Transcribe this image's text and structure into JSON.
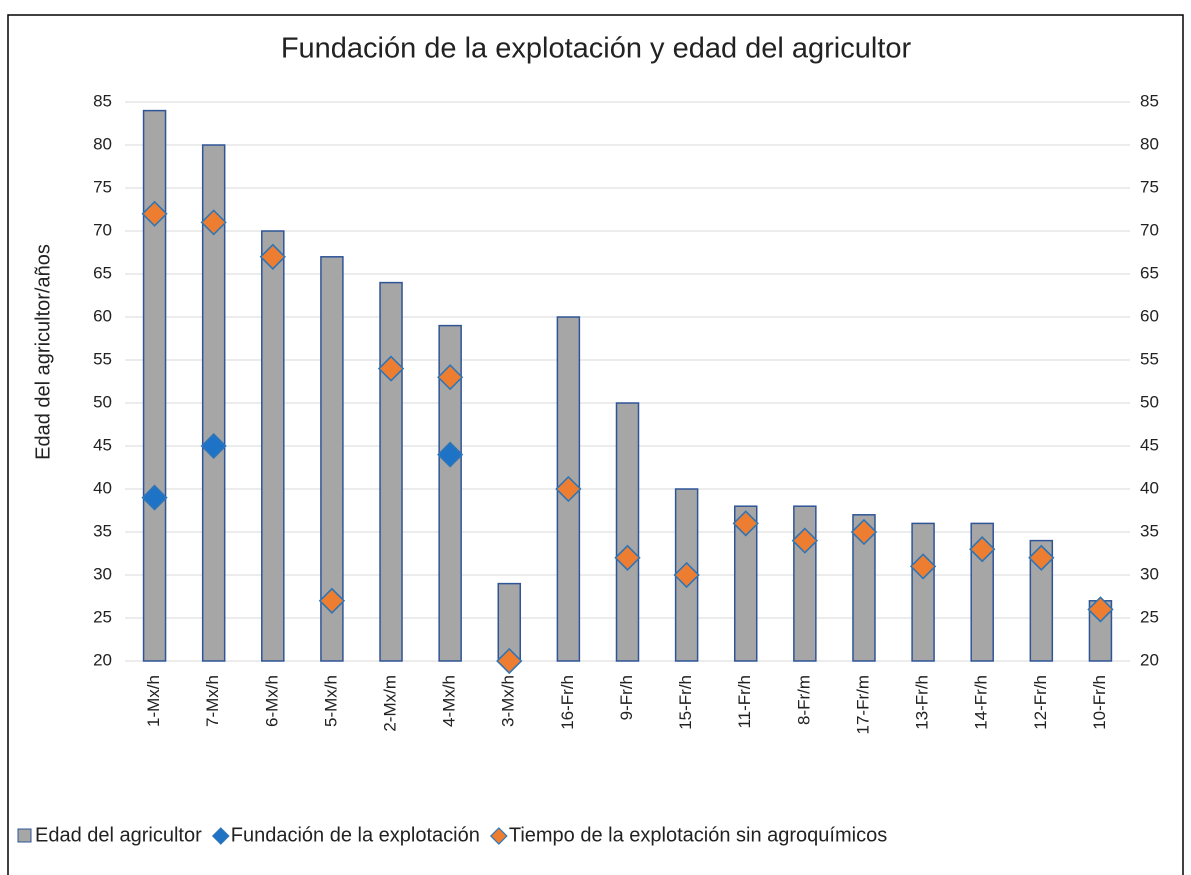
{
  "chart_data": {
    "type": "bar",
    "title": "Fundación de la explotación y edad del agricultor",
    "ylabel": "Edad del agricultor/años",
    "categories": [
      "1-Mx/h",
      "7-Mx/h",
      "6-Mx/h",
      "5-Mx/h",
      "2-Mx/m",
      "4-Mx/h",
      "3-Mx/h",
      "16-Fr/h",
      "9-Fr/h",
      "15-Fr/h",
      "11-Fr/h",
      "8-Fr/m",
      "17-Fr/m",
      "13-Fr/h",
      "14-Fr/h",
      "12-Fr/h",
      "10-Fr/h"
    ],
    "series": [
      {
        "name": "Edad del agricultor",
        "type": "bar",
        "color": "#a6a6a6",
        "values": [
          84,
          80,
          70,
          67,
          64,
          59,
          29,
          60,
          50,
          40,
          38,
          38,
          37,
          36,
          36,
          34,
          27
        ]
      },
      {
        "name": "Fundación de la explotación",
        "type": "diamond",
        "color": "#1f73c6",
        "values": [
          39,
          45,
          67,
          27,
          54,
          44,
          20,
          40,
          32,
          30,
          36,
          34,
          35,
          31,
          33,
          32,
          26
        ]
      },
      {
        "name": "Tiempo de la explotación sin agroquímicos",
        "type": "diamond",
        "color": "#ed7d31",
        "axis": "y2",
        "values": [
          72,
          71,
          67,
          27,
          54,
          53,
          20,
          40,
          32,
          30,
          36,
          34,
          35,
          31,
          33,
          32,
          26
        ]
      }
    ],
    "ylim": [
      20,
      85
    ],
    "yticks": [
      20,
      25,
      30,
      35,
      40,
      45,
      50,
      55,
      60,
      65,
      70,
      75,
      80,
      85
    ],
    "y2lim": [
      20,
      85
    ],
    "y2ticks": [
      20,
      25,
      30,
      35,
      40,
      45,
      50,
      55,
      60,
      65,
      70,
      75,
      80,
      85
    ],
    "grid": true,
    "legend": "bottom"
  }
}
